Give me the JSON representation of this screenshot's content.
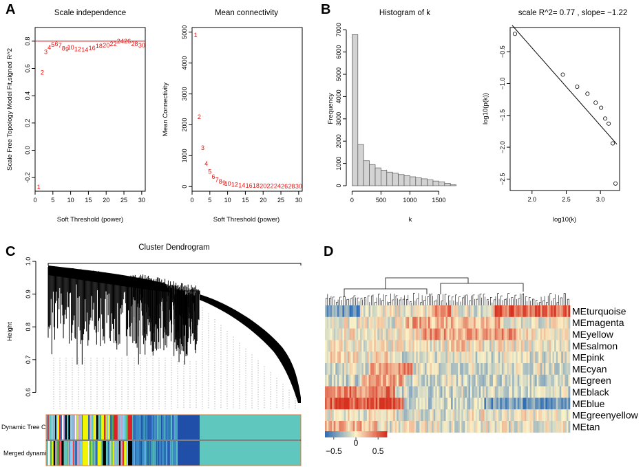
{
  "panels": {
    "A": {
      "letter": "A",
      "scale_independence": {
        "type": "scatter-text",
        "title": "Scale independence",
        "xlabel": "Soft Threshold (power)",
        "ylabel": "Scale Free Topology Model Fit,signed R^2",
        "xlim": [
          0,
          31
        ],
        "ylim": [
          -0.3,
          0.9
        ],
        "xticks": [
          0,
          5,
          10,
          15,
          20,
          25,
          30
        ],
        "yticks": [
          -0.2,
          0.0,
          0.2,
          0.4,
          0.6,
          0.8
        ],
        "cutoff_line": 0.8,
        "points": [
          {
            "x": 1,
            "y": -0.27,
            "label": "1"
          },
          {
            "x": 2,
            "y": 0.57,
            "label": "2"
          },
          {
            "x": 3,
            "y": 0.72,
            "label": "3"
          },
          {
            "x": 4,
            "y": 0.755,
            "label": "4"
          },
          {
            "x": 5,
            "y": 0.775,
            "label": "5"
          },
          {
            "x": 6,
            "y": 0.78,
            "label": "6"
          },
          {
            "x": 7,
            "y": 0.77,
            "label": "7"
          },
          {
            "x": 8,
            "y": 0.745,
            "label": "8"
          },
          {
            "x": 9,
            "y": 0.74,
            "label": "9"
          },
          {
            "x": 10,
            "y": 0.755,
            "label": "10"
          },
          {
            "x": 12,
            "y": 0.74,
            "label": "12"
          },
          {
            "x": 14,
            "y": 0.735,
            "label": "14"
          },
          {
            "x": 16,
            "y": 0.75,
            "label": "16"
          },
          {
            "x": 18,
            "y": 0.765,
            "label": "18"
          },
          {
            "x": 20,
            "y": 0.77,
            "label": "20"
          },
          {
            "x": 22,
            "y": 0.78,
            "label": "22"
          },
          {
            "x": 24,
            "y": 0.8,
            "label": "24"
          },
          {
            "x": 26,
            "y": 0.8,
            "label": "26"
          },
          {
            "x": 28,
            "y": 0.78,
            "label": "28"
          },
          {
            "x": 30,
            "y": 0.77,
            "label": "30"
          }
        ]
      },
      "mean_connectivity": {
        "type": "scatter-text",
        "title": "Mean connectivity",
        "xlabel": "Soft Threshold (power)",
        "ylabel": "Mean Connectivity",
        "xlim": [
          0,
          31
        ],
        "ylim": [
          -150,
          5150
        ],
        "xticks": [
          0,
          5,
          10,
          15,
          20,
          25,
          30
        ],
        "yticks": [
          0,
          1000,
          2000,
          3000,
          4000,
          5000
        ],
        "points": [
          {
            "x": 1,
            "y": 4900,
            "label": "1"
          },
          {
            "x": 2,
            "y": 2250,
            "label": "2"
          },
          {
            "x": 3,
            "y": 1250,
            "label": "3"
          },
          {
            "x": 4,
            "y": 740,
            "label": "4"
          },
          {
            "x": 5,
            "y": 480,
            "label": "5"
          },
          {
            "x": 6,
            "y": 320,
            "label": "6"
          },
          {
            "x": 7,
            "y": 220,
            "label": "7"
          },
          {
            "x": 8,
            "y": 160,
            "label": "8"
          },
          {
            "x": 9,
            "y": 120,
            "label": "9"
          },
          {
            "x": 10,
            "y": 90,
            "label": "10"
          },
          {
            "x": 12,
            "y": 60,
            "label": "12"
          },
          {
            "x": 14,
            "y": 40,
            "label": "14"
          },
          {
            "x": 16,
            "y": 30,
            "label": "16"
          },
          {
            "x": 18,
            "y": 25,
            "label": "18"
          },
          {
            "x": 20,
            "y": 20,
            "label": "20"
          },
          {
            "x": 22,
            "y": 15,
            "label": "22"
          },
          {
            "x": 24,
            "y": 12,
            "label": "24"
          },
          {
            "x": 26,
            "y": 10,
            "label": "26"
          },
          {
            "x": 28,
            "y": 8,
            "label": "28"
          },
          {
            "x": 30,
            "y": 6,
            "label": "30"
          }
        ]
      }
    },
    "B": {
      "letter": "B",
      "histogram": {
        "type": "bar",
        "title": "Histogram of k",
        "xlabel": "k",
        "ylabel": "Frequency",
        "xlim": [
          -100,
          1900
        ],
        "ylim": [
          0,
          7100
        ],
        "xticks": [
          0,
          500,
          1000,
          1500
        ],
        "yticks": [
          0,
          1000,
          2000,
          3000,
          4000,
          5000,
          6000,
          7000
        ],
        "bin_width": 100,
        "bin_start": 0,
        "values": [
          6780,
          1850,
          1120,
          950,
          800,
          700,
          610,
          560,
          500,
          450,
          400,
          350,
          310,
          260,
          210,
          170,
          110,
          40
        ]
      },
      "scale_free": {
        "type": "scatter",
        "title": "scale R^2= 0.77 , slope= −1.22",
        "xlabel": "log10(k)",
        "ylabel": "log10(p(k))",
        "xlim": [
          1.68,
          3.28
        ],
        "ylim": [
          -2.68,
          -0.12
        ],
        "xticks": [
          2.0,
          2.5,
          3.0
        ],
        "yticks": [
          -0.5,
          -1.0,
          -1.5,
          -2.0,
          -2.5
        ],
        "points": [
          {
            "x": 1.75,
            "y": -0.22
          },
          {
            "x": 2.45,
            "y": -0.86
          },
          {
            "x": 2.66,
            "y": -1.05
          },
          {
            "x": 2.81,
            "y": -1.16
          },
          {
            "x": 2.93,
            "y": -1.3
          },
          {
            "x": 3.01,
            "y": -1.38
          },
          {
            "x": 3.07,
            "y": -1.55
          },
          {
            "x": 3.12,
            "y": -1.63
          },
          {
            "x": 3.18,
            "y": -1.94
          },
          {
            "x": 3.22,
            "y": -2.57
          }
        ],
        "fit": {
          "intercept": 2.0,
          "slope": -1.22
        }
      }
    },
    "C": {
      "letter": "C",
      "title": "Cluster Dendrogram",
      "ylabel": "Height",
      "ylim": [
        0.58,
        1.0
      ],
      "yticks": [
        0.6,
        0.7,
        0.8,
        0.9,
        1.0
      ],
      "color_rows": [
        "Dynamic Tree Cut",
        "Merged dynamic"
      ]
    },
    "D": {
      "letter": "D",
      "modules": [
        "MEturquoise",
        "MEmagenta",
        "MEyellow",
        "MEsalmon",
        "MEpink",
        "MEcyan",
        "MEgreen",
        "MEblack",
        "MEblue",
        "MEgreenyellow",
        "MEtan"
      ],
      "colorbar": {
        "ticks": [
          "−0.5",
          "0",
          "0.5"
        ],
        "range": [
          -0.7,
          0.7
        ]
      }
    }
  },
  "colors": {
    "fit_line": "#e8130f",
    "point_text": "#e8130f",
    "hist_fill": "#d3d3d3",
    "turquoise_module": "#5fc7bd",
    "blue_module": "#1f4fa8",
    "heat_low": "#2e6db6",
    "heat_mid": "#fbf3c8",
    "heat_high": "#d7301f"
  }
}
